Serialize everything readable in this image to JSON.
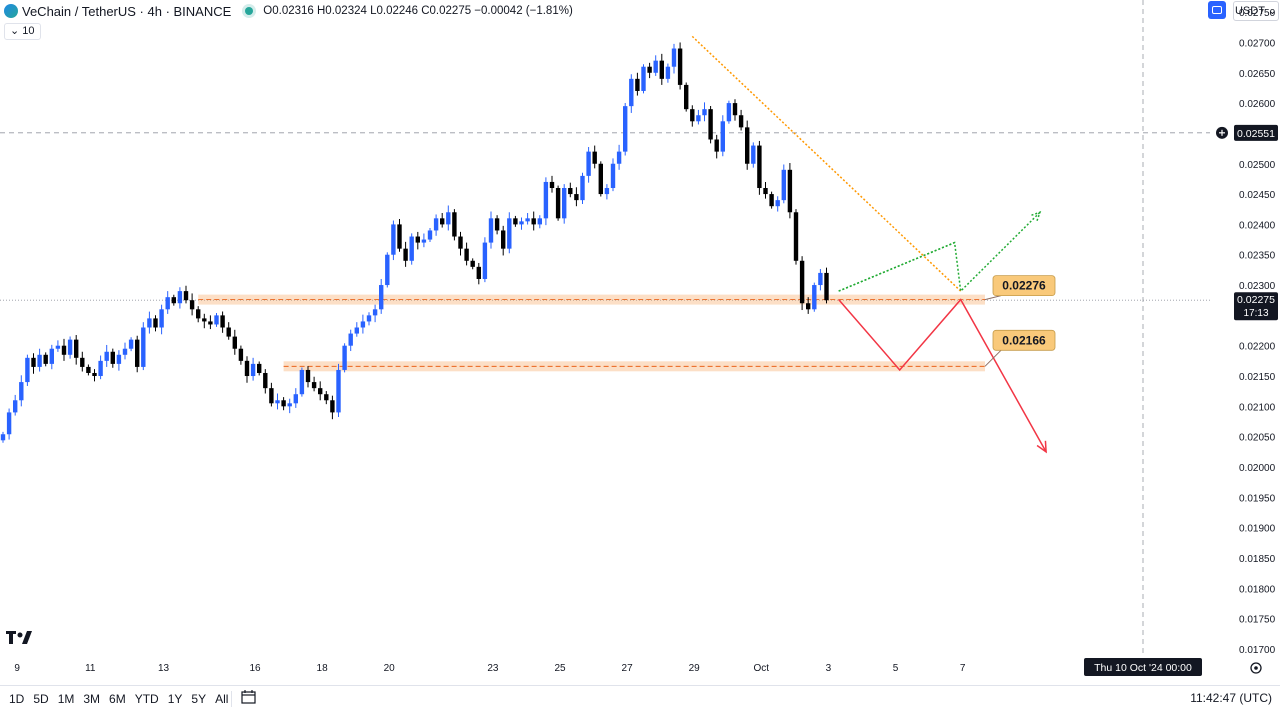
{
  "header": {
    "symbol": "VeChain / TetherUS · 4h · BINANCE",
    "ohlc": "O0.02316 H0.02324 L0.02246 C0.02275 −0.00042 (−1.81%)"
  },
  "volume_toggle": "10",
  "currency": "USDT ⌄",
  "colors": {
    "up": "#2962ff",
    "down": "#000000",
    "zone": "#f7a35c",
    "target": "#f23645",
    "guide": "#22ab34",
    "trend": "#ff9800"
  },
  "chart_data": {
    "type": "candlestick",
    "ylim": [
      0.0169,
      0.0277
    ],
    "y_ticks": [
      "0.02750",
      "0.02700",
      "0.02650",
      "0.02600",
      "0.02550",
      "0.02500",
      "0.02450",
      "0.02400",
      "0.02350",
      "0.02300",
      "0.02250",
      "0.02200",
      "0.02150",
      "0.02100",
      "0.02050",
      "0.02000",
      "0.01950",
      "0.01900",
      "0.01850",
      "0.01800",
      "0.01750",
      "0.01700"
    ],
    "x_ticks": [
      {
        "label": "9",
        "i": 1
      },
      {
        "label": "11",
        "i": 13
      },
      {
        "label": "13",
        "i": 25
      },
      {
        "label": "16",
        "i": 40
      },
      {
        "label": "18",
        "i": 51
      },
      {
        "label": "20",
        "i": 62
      },
      {
        "label": "23",
        "i": 79
      },
      {
        "label": "25",
        "i": 90
      },
      {
        "label": "27",
        "i": 101
      },
      {
        "label": "29",
        "i": 112
      },
      {
        "label": "Oct",
        "i": 123
      },
      {
        "label": "3",
        "i": 134
      },
      {
        "label": "5",
        "i": 145
      },
      {
        "label": "7",
        "i": 156
      }
    ],
    "closes": [
      0.02054,
      0.0209,
      0.0211,
      0.0214,
      0.0218,
      0.02165,
      0.02185,
      0.0217,
      0.02195,
      0.022,
      0.02185,
      0.0221,
      0.0218,
      0.02165,
      0.02155,
      0.0215,
      0.02175,
      0.0219,
      0.0217,
      0.02185,
      0.02195,
      0.0221,
      0.02165,
      0.0223,
      0.02245,
      0.0223,
      0.0226,
      0.0228,
      0.0227,
      0.0229,
      0.02275,
      0.0226,
      0.02245,
      0.0224,
      0.02235,
      0.0225,
      0.0223,
      0.02215,
      0.02195,
      0.02175,
      0.0215,
      0.0217,
      0.02155,
      0.0213,
      0.02105,
      0.0211,
      0.021,
      0.02105,
      0.0212,
      0.0216,
      0.0214,
      0.0213,
      0.0212,
      0.0211,
      0.0209,
      0.0216,
      0.022,
      0.0222,
      0.0223,
      0.0224,
      0.0225,
      0.0226,
      0.023,
      0.0235,
      0.024,
      0.0236,
      0.0234,
      0.0238,
      0.0237,
      0.02375,
      0.0239,
      0.0241,
      0.024,
      0.0242,
      0.0238,
      0.0236,
      0.0234,
      0.0233,
      0.0231,
      0.0237,
      0.0241,
      0.0239,
      0.0236,
      0.0241,
      0.024,
      0.02405,
      0.0241,
      0.024,
      0.0241,
      0.0247,
      0.0246,
      0.0241,
      0.0246,
      0.0245,
      0.0244,
      0.0248,
      0.0252,
      0.025,
      0.0245,
      0.0246,
      0.025,
      0.0252,
      0.02595,
      0.0264,
      0.0262,
      0.0266,
      0.0265,
      0.0267,
      0.0264,
      0.0266,
      0.0269,
      0.0263,
      0.0259,
      0.0257,
      0.0258,
      0.0259,
      0.0254,
      0.0252,
      0.0257,
      0.026,
      0.0258,
      0.0256,
      0.025,
      0.0253,
      0.0246,
      0.0245,
      0.0243,
      0.0244,
      0.0249,
      0.0242,
      0.0234,
      0.0227,
      0.0226,
      0.023,
      0.0232,
      0.02275
    ],
    "price_lines": [
      {
        "label": "0.02551",
        "value": 0.02551
      },
      {
        "label": "0.02275",
        "value": 0.02275,
        "countdown": "17:13"
      }
    ],
    "zones": [
      {
        "label": "0.02276",
        "value": 0.02276
      },
      {
        "label": "0.02166",
        "value": 0.02166
      }
    ],
    "projection": [
      [
        137,
        0.02276
      ],
      [
        147,
        0.0216
      ],
      [
        157,
        0.02276
      ],
      [
        171,
        0.02025
      ]
    ],
    "guide": [
      [
        137,
        0.0229
      ],
      [
        156,
        0.0237
      ],
      [
        157,
        0.0229
      ],
      [
        170,
        0.0242
      ]
    ],
    "trendline": [
      [
        113,
        0.0271
      ],
      [
        157,
        0.0229
      ]
    ],
    "crosshair_time": "Thu 10 Oct '24   00:00"
  },
  "ranges": [
    "1D",
    "5D",
    "1M",
    "3M",
    "6M",
    "YTD",
    "1Y",
    "5Y",
    "All"
  ],
  "clock": "11:42:47 (UTC)"
}
